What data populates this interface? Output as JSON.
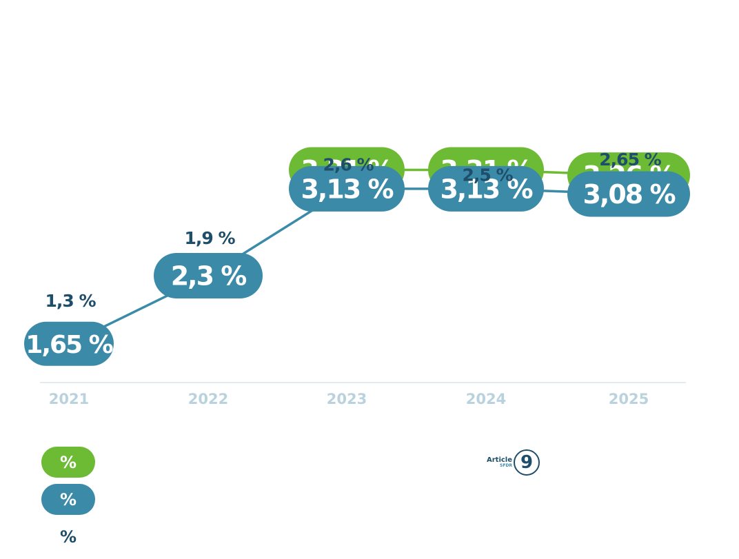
{
  "chart_data": {
    "type": "line",
    "categories": [
      "2021",
      "2022",
      "2023",
      "2024",
      "2025"
    ],
    "series": [
      {
        "values": [
          null,
          null,
          3.31,
          3.31,
          3.26
        ],
        "labels": [
          "",
          "",
          "3,31 %",
          "3,31 %",
          "3,26 %"
        ],
        "color": "#6dbb35",
        "style": "pill-line"
      },
      {
        "values": [
          1.65,
          2.3,
          3.13,
          3.13,
          3.08
        ],
        "labels": [
          "1,65 %",
          "2,3 %",
          "3,13 %",
          "3,13 %",
          "3,08 %"
        ],
        "color": "#3a8aa8",
        "style": "pill-line"
      },
      {
        "values": [
          1.3,
          1.9,
          2.6,
          2.5,
          2.65
        ],
        "labels": [
          "1,3 %",
          "1,9 %",
          "2,6 %",
          "2,5 %",
          "2,65 %"
        ],
        "color": "#1f4e6b",
        "style": "text"
      }
    ],
    "grid": false,
    "legend_position": "bottom-left"
  },
  "legend": {
    "items": [
      {
        "symbol": "%",
        "color": "#6dbb35"
      },
      {
        "symbol": "%",
        "color": "#3a8aa8"
      },
      {
        "symbol": "%",
        "color": ""
      }
    ]
  },
  "logo": {
    "word": "Article",
    "sub": "SFDR",
    "number": "9"
  }
}
